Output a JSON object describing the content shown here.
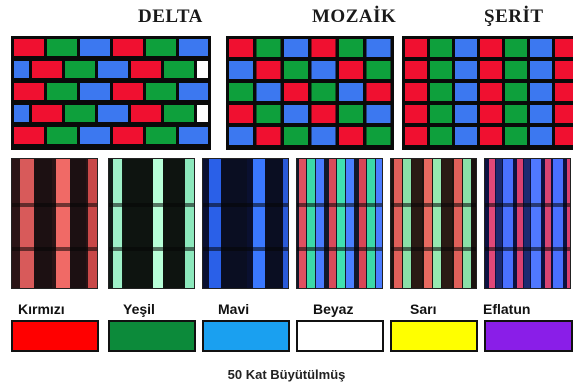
{
  "titles": {
    "delta": "DELTA",
    "mozaik": "MOZAİK",
    "serit": "ŞERİT"
  },
  "subpixel_colors": {
    "red": "#f01030",
    "green": "#0ea03c",
    "blue": "#3c78f0",
    "white": "#ffffff"
  },
  "swatches": [
    {
      "label": "Kırmızı",
      "color": "#ff0000"
    },
    {
      "label": "Yeşil",
      "color": "#0c8a3a"
    },
    {
      "label": "Mavi",
      "color": "#1aa0f0"
    },
    {
      "label": "Beyaz",
      "color": "#ffffff"
    },
    {
      "label": "Sarı",
      "color": "#ffff00"
    },
    {
      "label": "Eflatun",
      "color": "#8a1ee8"
    }
  ],
  "caption": "50 Kat Büyütülmüş"
}
